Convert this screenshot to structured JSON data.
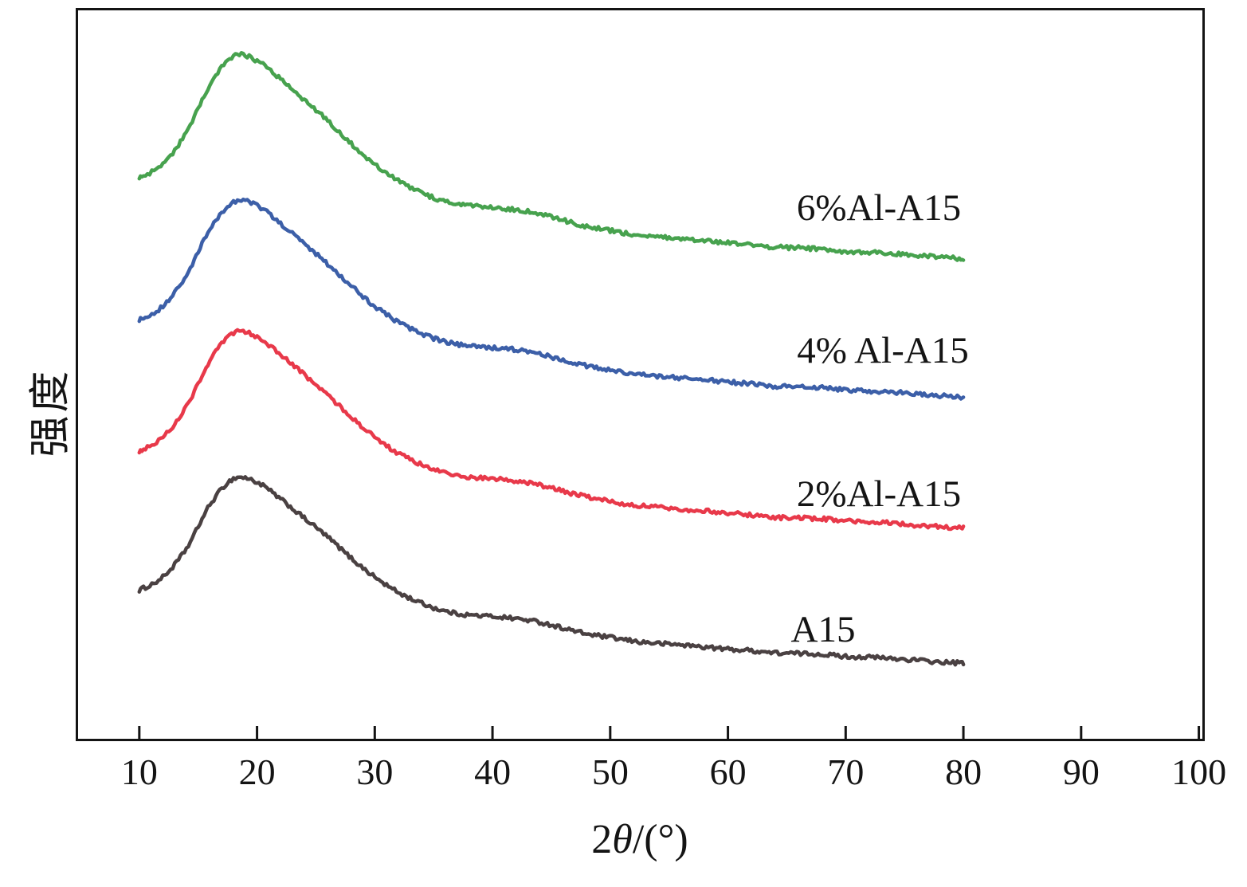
{
  "chart_data": {
    "type": "line",
    "title": "",
    "xlabel": "2θ/(°)",
    "xlabel_parts": {
      "prefix": "2",
      "theta": "θ",
      "suffix": "/(°)"
    },
    "ylabel": "强度",
    "xlim": [
      4.8,
      100.3
    ],
    "ylim": [
      0,
      1000
    ],
    "x_ticks": [
      10,
      20,
      30,
      40,
      50,
      60,
      70,
      80,
      90,
      100
    ],
    "y_ticks": [],
    "grid": false,
    "legend_position": "inline-labels",
    "axis_color": "#141414",
    "x": [
      10,
      12,
      14,
      16,
      18,
      20,
      22,
      24,
      26,
      28,
      30,
      32,
      34,
      36,
      38,
      40,
      42,
      44,
      46,
      48,
      50,
      52,
      54,
      56,
      58,
      60,
      62,
      64,
      66,
      68,
      70,
      72,
      74,
      76,
      78,
      80
    ],
    "series": [
      {
        "name": "A15",
        "color": "#4a4142",
        "values": [
          204,
          222,
          261,
          321,
          357,
          352,
          329,
          303,
          277,
          248,
          222,
          201,
          186,
          175,
          170,
          168,
          165,
          160,
          152,
          144,
          139,
          134,
          131,
          129,
          126,
          123,
          121,
          118,
          117,
          116,
          113,
          112,
          110,
          108,
          105,
          104
        ]
      },
      {
        "name": "2%Al-A15",
        "color": "#e8394a",
        "values": [
          395,
          414,
          456,
          519,
          557,
          552,
          527,
          500,
          472,
          442,
          414,
          392,
          376,
          365,
          359,
          357,
          354,
          348,
          340,
          332,
          326,
          321,
          318,
          315,
          313,
          310,
          307,
          304,
          303,
          302,
          299,
          297,
          296,
          293,
          291,
          289
        ]
      },
      {
        "name": "4% Al-A15",
        "color": "#3c5fa8",
        "values": [
          575,
          594,
          636,
          699,
          737,
          732,
          707,
          680,
          652,
          622,
          594,
          572,
          556,
          545,
          539,
          537,
          534,
          528,
          520,
          512,
          506,
          501,
          498,
          495,
          493,
          490,
          487,
          484,
          483,
          482,
          479,
          477,
          476,
          473,
          471,
          469
        ]
      },
      {
        "name": "6%Al-A15",
        "color": "#47a24e",
        "values": [
          769,
          789,
          832,
          897,
          937,
          931,
          906,
          877,
          849,
          817,
          789,
          766,
          749,
          738,
          732,
          729,
          726,
          721,
          712,
          703,
          698,
          692,
          689,
          686,
          684,
          681,
          678,
          675,
          674,
          672,
          669,
          668,
          666,
          664,
          661,
          659
        ]
      }
    ]
  }
}
